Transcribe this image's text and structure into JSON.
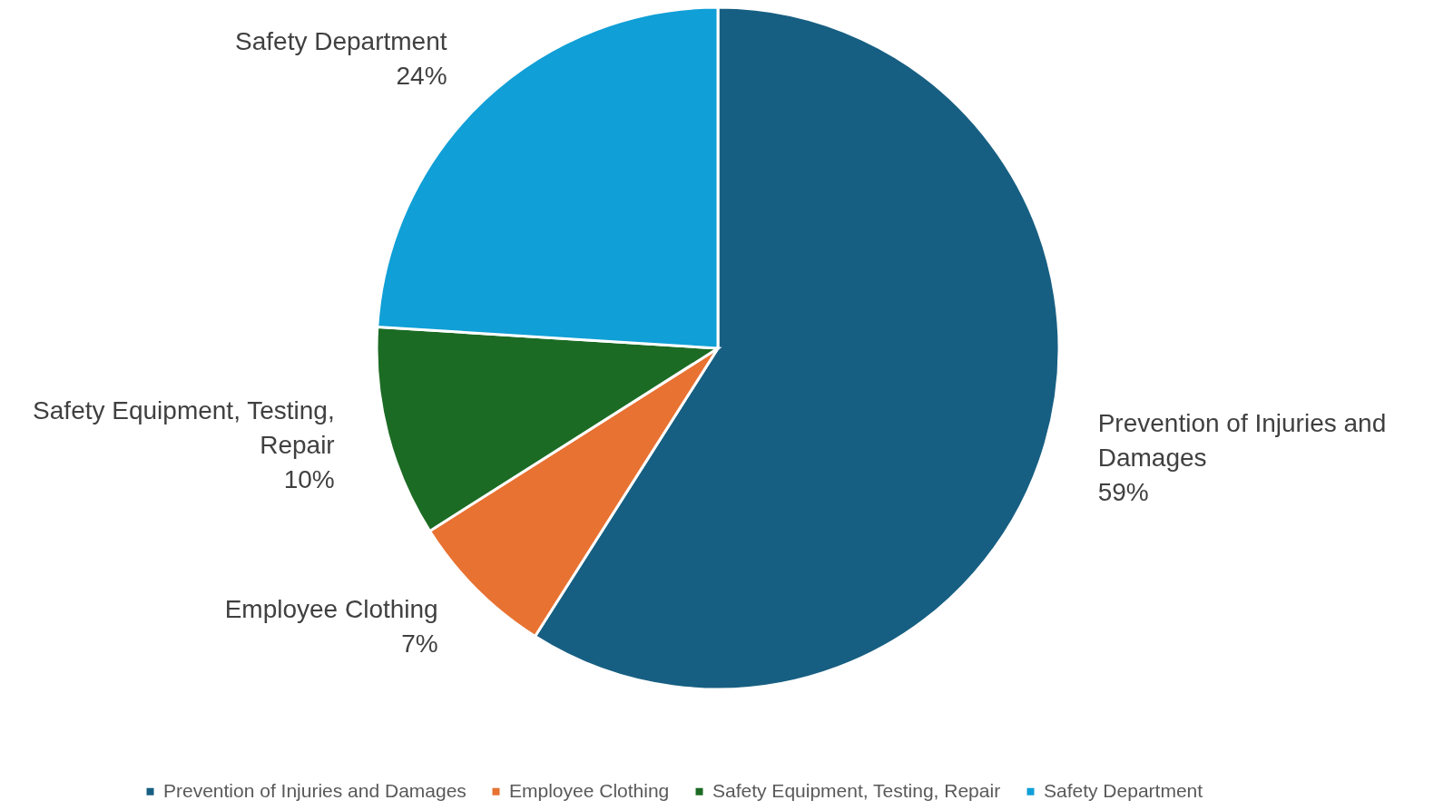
{
  "chart_data": {
    "type": "pie",
    "categories": [
      "Prevention of Injuries and Damages",
      "Employee Clothing",
      "Safety Equipment, Testing, Repair",
      "Safety Department"
    ],
    "values": [
      59,
      7,
      10,
      24
    ],
    "value_labels": [
      "59%",
      "7%",
      "10%",
      "24%"
    ],
    "colors": [
      "#175f82",
      "#e87232",
      "#1c6b24",
      "#109fd6"
    ],
    "legend": "bottom"
  }
}
